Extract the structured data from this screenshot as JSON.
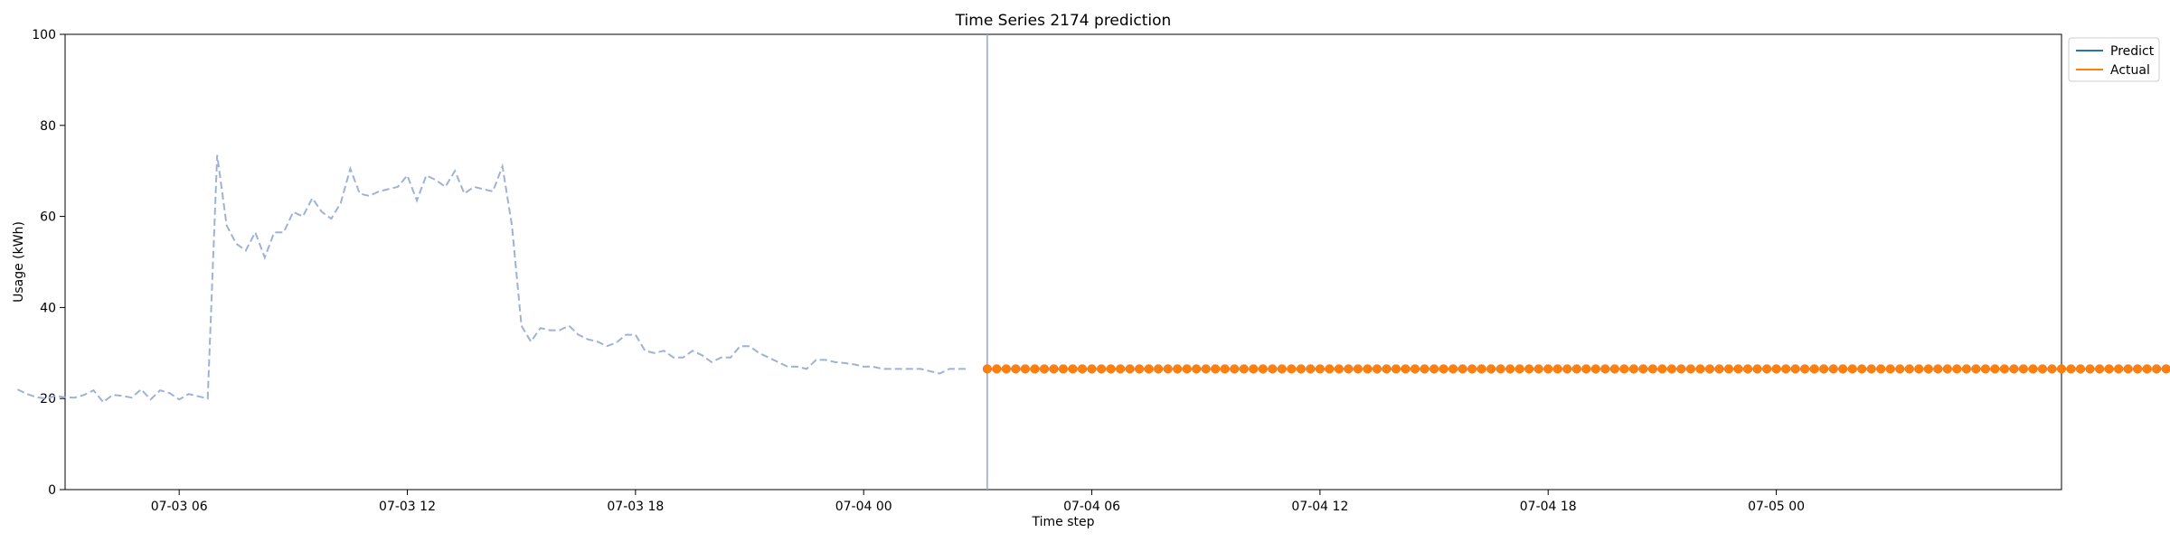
{
  "chart_data": {
    "type": "line",
    "title": "Time Series 2174 prediction",
    "xlabel": "Time step",
    "ylabel": "Usage (kWh)",
    "x_unit": "hours since 07-03 00:00",
    "xlim": [
      3.0,
      55.5
    ],
    "ylim": [
      0,
      100
    ],
    "yticks": [
      0,
      20,
      40,
      60,
      80,
      100
    ],
    "xticks": [
      {
        "x": 6,
        "label": "07-03 06"
      },
      {
        "x": 12,
        "label": "07-03 12"
      },
      {
        "x": 18,
        "label": "07-03 18"
      },
      {
        "x": 24,
        "label": "07-04 00"
      },
      {
        "x": 30,
        "label": "07-04 06"
      },
      {
        "x": 36,
        "label": "07-04 12"
      },
      {
        "x": 42,
        "label": "07-04 18"
      },
      {
        "x": 48,
        "label": "07-05 00"
      }
    ],
    "split_line_x": 27.25,
    "grid": false,
    "legend_position": "upper-right-outside",
    "history": {
      "color": "#9db3d6",
      "start_x": 1.75,
      "step": 0.25,
      "values": [
        22,
        21,
        20.3,
        20,
        20.6,
        20.3,
        20.2,
        20.8,
        21.8,
        19.2,
        20.8,
        20.6,
        20.2,
        22,
        19.8,
        21.8,
        21.2,
        19.8,
        21,
        20.5,
        20,
        73.5,
        58,
        54,
        52.5,
        56.5,
        51,
        56.5,
        56.5,
        61,
        60,
        64,
        61,
        59.5,
        63,
        70.5,
        65,
        64.5,
        65.5,
        66,
        66.5,
        69,
        63.5,
        69,
        68,
        66.5,
        70,
        65,
        66.5,
        66,
        65.5,
        71,
        58,
        36,
        32.5,
        35.5,
        35,
        35,
        36,
        34,
        33,
        32.5,
        31.5,
        32.3,
        34,
        34,
        30.5,
        30,
        30.5,
        29,
        29,
        30.5,
        29.5,
        28,
        29,
        29,
        31.5,
        31.5,
        30,
        29,
        28,
        27,
        27,
        26.5,
        28.5,
        28.5,
        28,
        27.8,
        27.5,
        27,
        27,
        26.5,
        26.5,
        26.5,
        26.5,
        26.5,
        26,
        25.5,
        26.5,
        26.5,
        26.5
      ]
    },
    "forecast_start_x": 27.25,
    "forecast_step": 0.25,
    "series": [
      {
        "name": "Predict",
        "color": "#1f77b4",
        "values": [
          26.5,
          26.5,
          26.5,
          26.5,
          26.5,
          26.5,
          26.5,
          26.5,
          26.5,
          26.5,
          26.5,
          26.5,
          26.5,
          26.5,
          26.5,
          26.5,
          26.5,
          26.5,
          26.5,
          26.5,
          26.5,
          26.5,
          26.5,
          26.5,
          26.5,
          26.5,
          26.5,
          26.5,
          26.5,
          26.5,
          26.5,
          26.5,
          26.5,
          26.5,
          26.5,
          26.5,
          26.5,
          26.5,
          26.5,
          26.5,
          26.5,
          26.5,
          26.5,
          26.5,
          26.5,
          26.5,
          26.5,
          26.5,
          26.5,
          26.5,
          26.5,
          26.5,
          26.5,
          26.5,
          26.5,
          26.5,
          26.5,
          26.5,
          26.5,
          26.5,
          26.5,
          26.5,
          26.5,
          26.5,
          26.5,
          26.5,
          26.5,
          26.5,
          26.5,
          26.5,
          26.5,
          26.5,
          26.5,
          26.5,
          26.5,
          26.5,
          26.5,
          26.5,
          26.5,
          26.5,
          26.5,
          26.5,
          26.5,
          26.5,
          26.5,
          26.5,
          26.5,
          26.5,
          26.5,
          26.5,
          26.5,
          26.5,
          26.5,
          26.5,
          26.5,
          26.5,
          26.5,
          26.5,
          26.5,
          26.5,
          26.5,
          26.5,
          26.5,
          26.5,
          26.5,
          26.5,
          26.5,
          26.5,
          26.5,
          26.5,
          26.5,
          26.5,
          26.5,
          26.5,
          26.5,
          26.5,
          26.5,
          26.5,
          26.5,
          26.5,
          26.5,
          26.5,
          26.5,
          26.5,
          26.5,
          26.5,
          26.5,
          26.5,
          26.5,
          26.5,
          26.5,
          26.5,
          26.5,
          26.5,
          26.5
        ]
      },
      {
        "name": "Actual",
        "color": "#ff7f0e",
        "values": [
          26.5,
          26.5,
          26.5,
          26.5,
          26.5,
          26.5,
          26.5,
          26.5,
          26.5,
          26.5,
          26.5,
          26.5,
          26.5,
          26.5,
          26.5,
          26.5,
          26.5,
          26.5,
          26.5,
          26.5,
          26.5,
          26.5,
          26.5,
          26.5,
          26.5,
          26.5,
          26.5,
          26.5,
          26.5,
          26.5,
          26.5,
          26.5,
          26.5,
          26.5,
          26.5,
          26.5,
          26.5,
          26.5,
          26.5,
          26.5,
          26.5,
          26.5,
          26.5,
          26.5,
          26.5,
          26.5,
          26.5,
          26.5,
          26.5,
          26.5,
          26.5,
          26.5,
          26.5,
          26.5,
          26.5,
          26.5,
          26.5,
          26.5,
          26.5,
          26.5,
          26.5,
          26.5,
          26.5,
          26.5,
          26.5,
          26.5,
          26.5,
          26.5,
          26.5,
          26.5,
          26.5,
          26.5,
          26.5,
          26.5,
          26.5,
          26.5,
          26.5,
          26.5,
          26.5,
          26.5,
          26.5,
          26.5,
          26.5,
          26.5,
          26.5,
          26.5,
          26.5,
          26.5,
          26.5,
          26.5,
          26.5,
          26.5,
          26.5,
          26.5,
          26.5,
          26.5,
          26.5,
          26.5,
          26.5,
          26.5,
          26.5,
          26.5,
          26.5,
          26.5,
          26.5,
          26.5,
          26.5,
          26.5,
          26.5,
          26.5,
          26.5,
          26.5,
          26.5,
          26.5,
          26.5,
          26.5,
          26.5,
          26.5,
          26.5,
          26.5,
          26.5,
          26.5,
          26.5,
          26.5,
          26.5,
          26.5,
          26.5,
          26.5,
          26.5,
          26.5,
          26.5,
          26.5,
          26.5,
          26.5,
          26.5
        ]
      }
    ]
  }
}
